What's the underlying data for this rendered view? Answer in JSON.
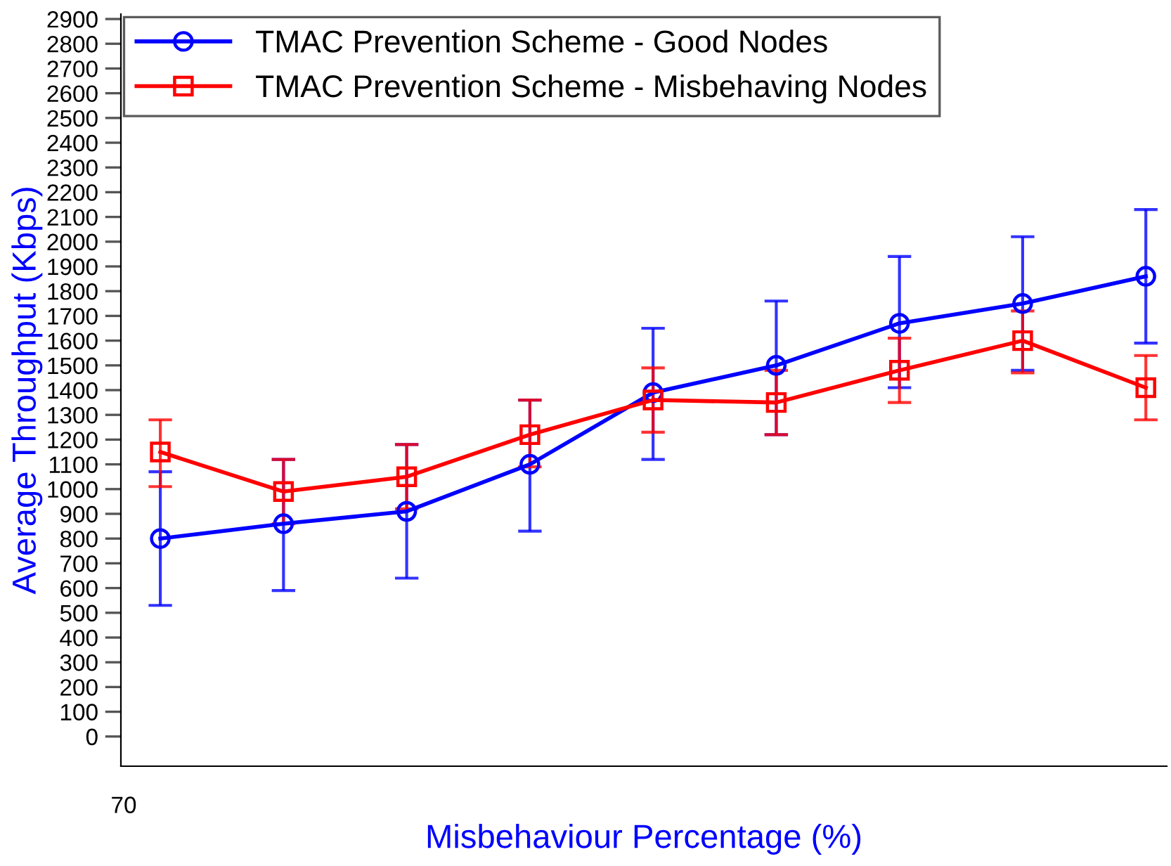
{
  "chart_data": {
    "type": "line",
    "xlabel": "Misbehaviour Percentage (%)",
    "ylabel": "Average Throughput (Kbps)",
    "categories": [
      null,
      null,
      null,
      null,
      null,
      null,
      null,
      null,
      null
    ],
    "annotations": [
      "70"
    ],
    "ylim": [
      -120,
      2920
    ],
    "yticks": [
      0,
      100,
      200,
      300,
      400,
      500,
      600,
      700,
      800,
      900,
      1000,
      1100,
      1200,
      1300,
      1400,
      1500,
      1600,
      1700,
      1800,
      1900,
      2000,
      2100,
      2200,
      2300,
      2400,
      2500,
      2600,
      2700,
      2800,
      2900
    ],
    "grid": false,
    "legend": "top left",
    "line_style": "solid",
    "series": [
      {
        "name": "TMAC Prevention Scheme - Good Nodes",
        "color": "#0000ff",
        "marker": "circle",
        "values": [
          800,
          860,
          910,
          1100,
          1390,
          1500,
          1670,
          1750,
          1860
        ],
        "errors": [
          [
            530,
            1070
          ],
          [
            590,
            1120
          ],
          [
            640,
            1180
          ],
          [
            830,
            1360
          ],
          [
            1120,
            1650
          ],
          [
            1220,
            1760
          ],
          [
            1410,
            1940
          ],
          [
            1480,
            2020
          ],
          [
            1590,
            2130
          ]
        ]
      },
      {
        "name": "TMAC Prevention Scheme - Misbehaving Nodes",
        "color": "#ff0000",
        "marker": "square",
        "values": [
          1150,
          990,
          1050,
          1220,
          1360,
          1350,
          1480,
          1600,
          1410
        ],
        "errors": [
          [
            1010,
            1280
          ],
          [
            860,
            1120
          ],
          [
            920,
            1180
          ],
          [
            1090,
            1360
          ],
          [
            1230,
            1490
          ],
          [
            1220,
            1480
          ],
          [
            1350,
            1610
          ],
          [
            1470,
            1720
          ],
          [
            1280,
            1540
          ]
        ]
      }
    ]
  }
}
